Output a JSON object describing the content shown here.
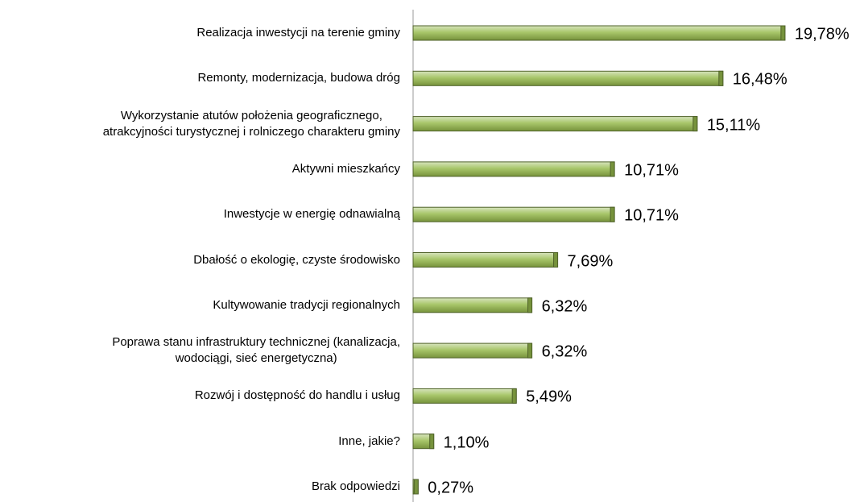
{
  "chart_data": {
    "type": "barh",
    "categories": [
      "Realizacja inwestycji na terenie gminy",
      "Remonty, modernizacja, budowa dróg",
      "Wykorzystanie atutów położenia geograficznego,\natrakcyjności turystycznej i rolniczego charakteru gminy",
      "Aktywni mieszkańcy",
      "Inwestycje w energię odnawialną",
      "Dbałość o ekologię, czyste środowisko",
      "Kultywowanie tradycji regionalnych",
      "Poprawa stanu infrastruktury technicznej (kanalizacja,\nwodociągi, sieć energetyczna)",
      "Rozwój i dostępność do handlu i usług",
      "Inne, jakie?",
      "Brak odpowiedzi"
    ],
    "values": [
      19.78,
      16.48,
      15.11,
      10.71,
      10.71,
      7.69,
      6.32,
      6.32,
      5.49,
      1.1,
      0.27
    ],
    "value_labels": [
      "19,78%",
      "16,48%",
      "15,11%",
      "10,71%",
      "10,71%",
      "7,69%",
      "6,32%",
      "6,32%",
      "5,49%",
      "1,10%",
      "0,27%"
    ],
    "color": "#9bbb59",
    "xlim": [
      0,
      20
    ]
  }
}
